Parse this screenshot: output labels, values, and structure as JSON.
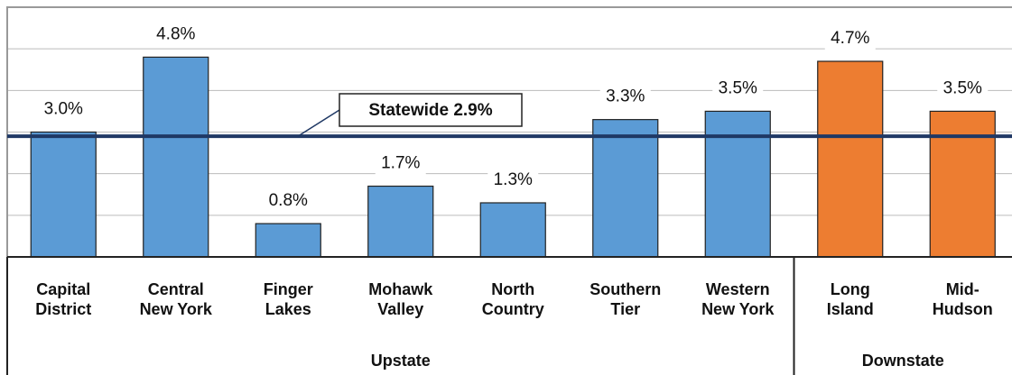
{
  "chart_data": {
    "type": "bar",
    "categories": [
      [
        "Capital",
        "District"
      ],
      [
        "Central",
        "New York"
      ],
      [
        "Finger",
        "Lakes"
      ],
      [
        "Mohawk",
        "Valley"
      ],
      [
        "North",
        "Country"
      ],
      [
        "Southern",
        "Tier"
      ],
      [
        "Western",
        "New York"
      ],
      [
        "Long",
        "Island"
      ],
      [
        "Mid-",
        "Hudson"
      ]
    ],
    "values": [
      3.0,
      4.8,
      0.8,
      1.7,
      1.3,
      3.3,
      3.5,
      4.7,
      3.5
    ],
    "value_labels": [
      "3.0%",
      "4.8%",
      "0.8%",
      "1.7%",
      "1.3%",
      "3.3%",
      "3.5%",
      "4.7%",
      "3.5%"
    ],
    "colors": [
      "#5b9bd5",
      "#5b9bd5",
      "#5b9bd5",
      "#5b9bd5",
      "#5b9bd5",
      "#5b9bd5",
      "#5b9bd5",
      "#ed7d31",
      "#ed7d31"
    ],
    "groups": [
      {
        "label": "Upstate",
        "start": 0,
        "end": 6
      },
      {
        "label": "Downstate",
        "start": 7,
        "end": 8
      }
    ],
    "reference_line": {
      "label": "Statewide 2.9%",
      "value": 2.9,
      "color": "#1f3864"
    },
    "ylim": [
      0,
      6
    ],
    "yticks": [
      0,
      1,
      2,
      3,
      4,
      5
    ],
    "grid": true
  }
}
